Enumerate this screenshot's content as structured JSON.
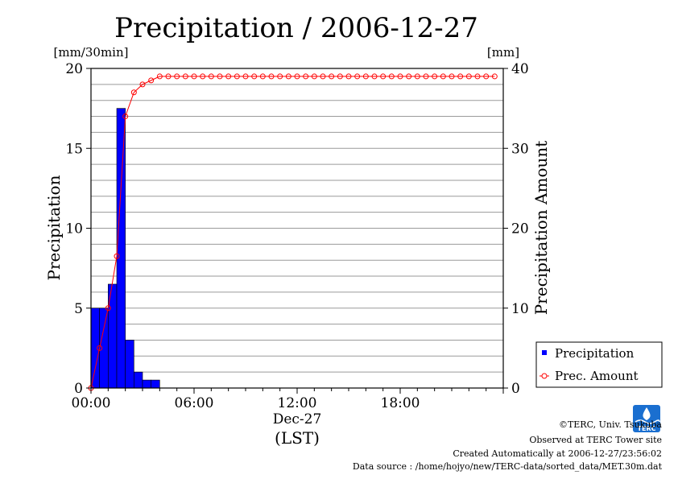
{
  "chart_data": {
    "type": "bar",
    "title": "Precipitation / 2006-12-27",
    "left_axis": {
      "unit_label": "[mm/30min]",
      "label": "Precipitation",
      "ylim": [
        0,
        20
      ],
      "ticks": [
        0,
        5,
        10,
        15,
        20
      ]
    },
    "right_axis": {
      "unit_label": "[mm]",
      "label": "Precipitation Amount",
      "ylim": [
        0,
        40
      ],
      "ticks": [
        0,
        10,
        20,
        30,
        40
      ]
    },
    "x_axis": {
      "range_hours": [
        0,
        24
      ],
      "tick_labels": [
        "00:00",
        "06:00",
        "12:00",
        "18:00"
      ],
      "tick_hours": [
        0,
        6,
        12,
        18
      ],
      "date_label": "Dec-27",
      "xlabel": "(LST)"
    },
    "grid": true,
    "legend_placement": "right",
    "series": [
      {
        "name": "Precipitation",
        "type": "bar",
        "axis": "left",
        "color": "#0000ff",
        "interval_hours": 0.5,
        "x_hours": [
          0,
          0.5,
          1.0,
          1.5,
          2.0,
          2.5,
          3.0,
          3.5
        ],
        "values": [
          5.0,
          5.0,
          6.5,
          17.5,
          3.0,
          1.0,
          0.5,
          0.5
        ]
      },
      {
        "name": "Prec. Amount",
        "type": "line",
        "axis": "right",
        "color": "#ff0000",
        "marker": "open-circle",
        "values": [
          0,
          5.0,
          10.0,
          16.5,
          34.0,
          37.0,
          38.0,
          38.5,
          39.0,
          39.0,
          39.0,
          39.0,
          39.0,
          39.0,
          39.0,
          39.0,
          39.0,
          39.0,
          39.0,
          39.0,
          39.0,
          39.0,
          39.0,
          39.0,
          39.0,
          39.0,
          39.0,
          39.0,
          39.0,
          39.0,
          39.0,
          39.0,
          39.0,
          39.0,
          39.0,
          39.0,
          39.0,
          39.0,
          39.0,
          39.0,
          39.0,
          39.0,
          39.0,
          39.0,
          39.0,
          39.0,
          39.0,
          39.0
        ]
      }
    ]
  },
  "logo": {
    "text": "TERC",
    "color": "#1a6fd0"
  },
  "footer": {
    "copyright": "©TERC, Univ. Tsukuba",
    "observed": "Observed at TERC Tower site",
    "created": "Created Automatically at 2006-12-27/23:56:02",
    "source": "Data source : /home/hojyo/new/TERC-data/sorted_data/MET.30m.dat"
  }
}
